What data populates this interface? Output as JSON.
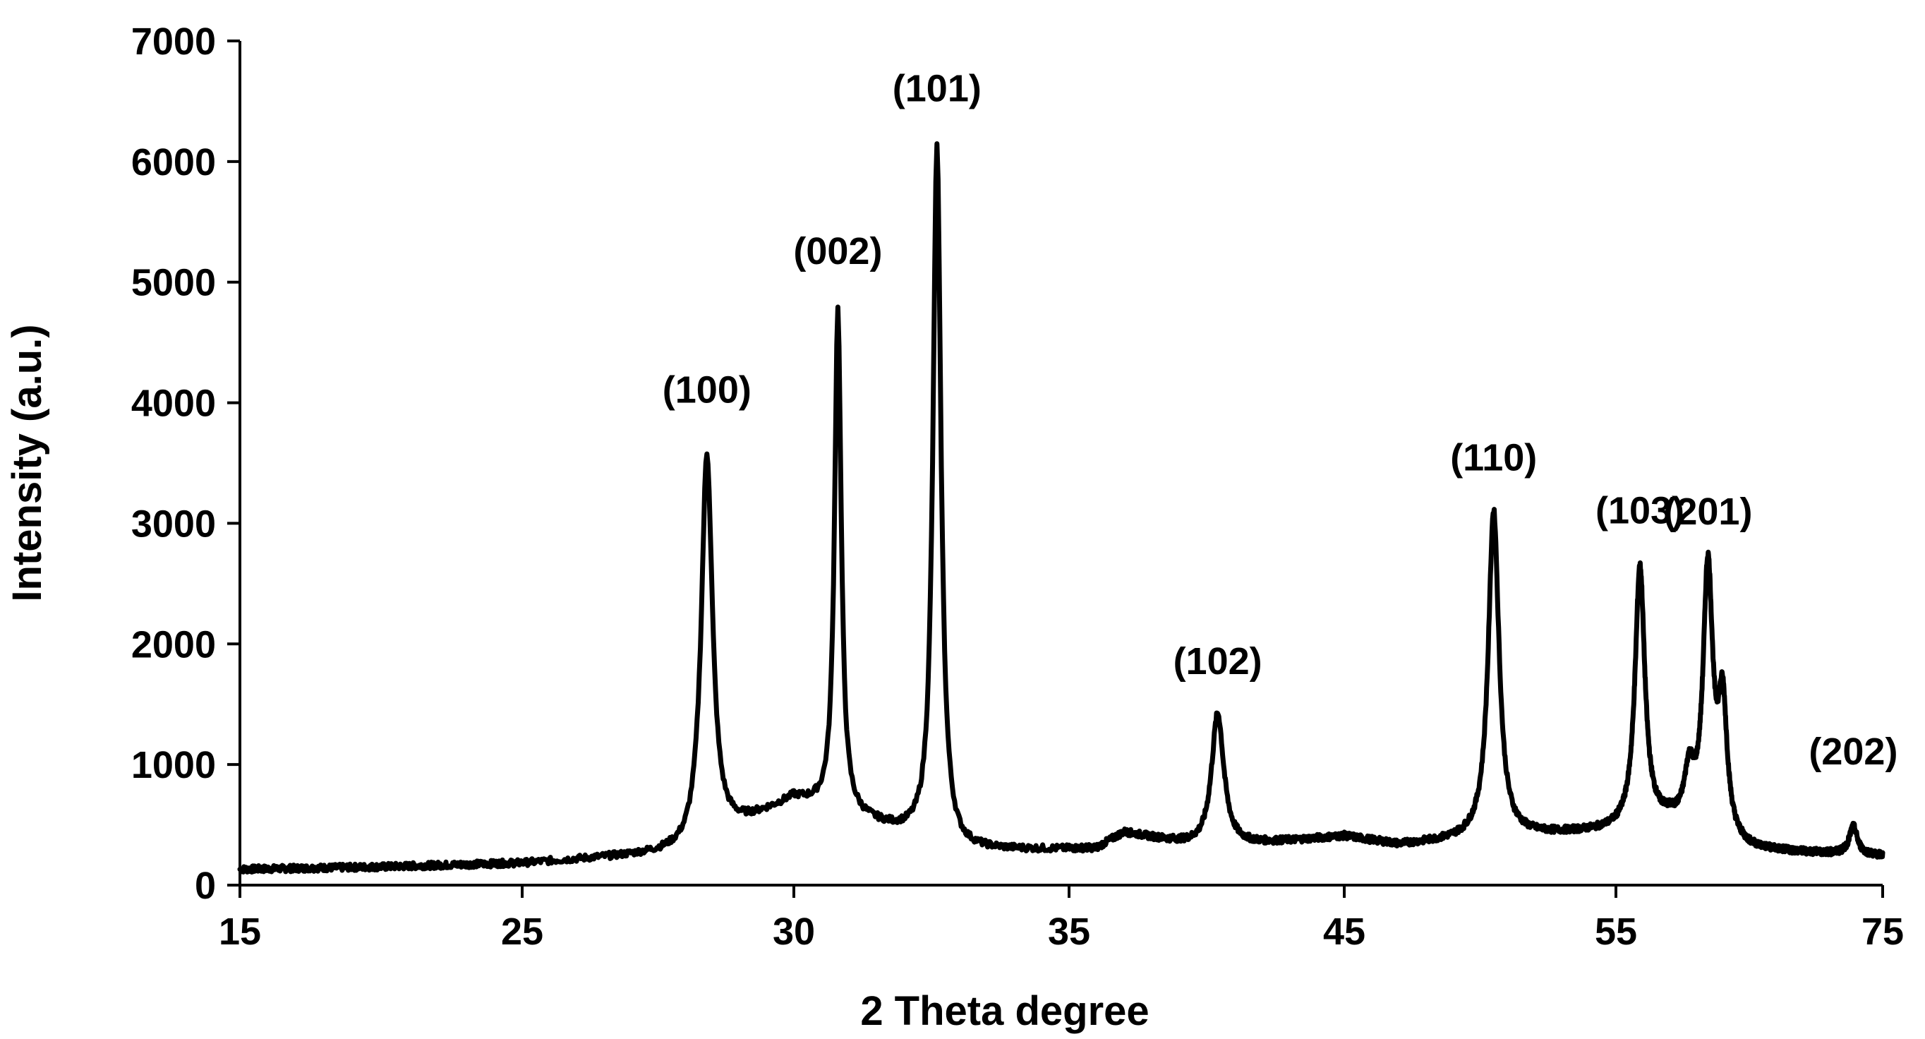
{
  "chart_data": {
    "type": "line",
    "xlabel": "2 Theta degree",
    "ylabel": "Intensity (a.u.)",
    "xlim": [
      15,
      75
    ],
    "ylim": [
      0,
      7000
    ],
    "x_ticks": [
      {
        "value": 15,
        "label": "15"
      },
      {
        "value": 25,
        "label": "25"
      },
      {
        "value": 30,
        "label": "30"
      },
      {
        "value": 35,
        "label": "35"
      },
      {
        "value": 45,
        "label": "45"
      },
      {
        "value": 55,
        "label": "55"
      },
      {
        "value": 75,
        "label": "75"
      }
    ],
    "y_ticks": [
      {
        "value": 0,
        "label": "0"
      },
      {
        "value": 1000,
        "label": "1000"
      },
      {
        "value": 2000,
        "label": "2000"
      },
      {
        "value": 3000,
        "label": "3000"
      },
      {
        "value": 4000,
        "label": "4000"
      },
      {
        "value": 5000,
        "label": "5000"
      },
      {
        "value": 6000,
        "label": "6000"
      },
      {
        "value": 7000,
        "label": "7000"
      }
    ],
    "grid": false,
    "baseline": [
      [
        15,
        130
      ],
      [
        20,
        150
      ],
      [
        25,
        180
      ],
      [
        28,
        270
      ],
      [
        30,
        700
      ],
      [
        33,
        280
      ],
      [
        36,
        300
      ],
      [
        37,
        430
      ],
      [
        40,
        300
      ],
      [
        45,
        400
      ],
      [
        47,
        330
      ],
      [
        50,
        380
      ],
      [
        53,
        420
      ],
      [
        56,
        450
      ],
      [
        59,
        500
      ],
      [
        62,
        340
      ],
      [
        65,
        280
      ],
      [
        75,
        240
      ]
    ],
    "peaks": [
      {
        "label": "(100)",
        "x": 28.4,
        "y": 3580,
        "width": 0.25,
        "label_y": 4000
      },
      {
        "label": "(002)",
        "x": 30.8,
        "y": 4760,
        "width": 0.15,
        "label_y": 5150
      },
      {
        "label": "(101)",
        "x": 32.6,
        "y": 6120,
        "width": 0.18,
        "label_y": 6500
      },
      {
        "label": "(102)",
        "x": 40.4,
        "y": 1420,
        "width": 0.28,
        "label_y": 1750
      },
      {
        "label": "(110)",
        "x": 50.5,
        "y": 3100,
        "width": 0.24,
        "label_y": 3440
      },
      {
        "label": "(103)",
        "x": 56.8,
        "y": 2620,
        "width": 0.22,
        "label_y": 3000
      },
      {
        "label": "(201)",
        "x": 61.9,
        "y": 2560,
        "width": 0.22,
        "label_y": 2990
      },
      {
        "label": "(202)",
        "x": 72.8,
        "y": 480,
        "width": 0.18,
        "label_y": 1000
      }
    ],
    "minor_peaks": [
      {
        "x": 60.5,
        "y": 850,
        "width": 0.22
      },
      {
        "x": 63.0,
        "y": 1400,
        "width": 0.2
      }
    ]
  }
}
